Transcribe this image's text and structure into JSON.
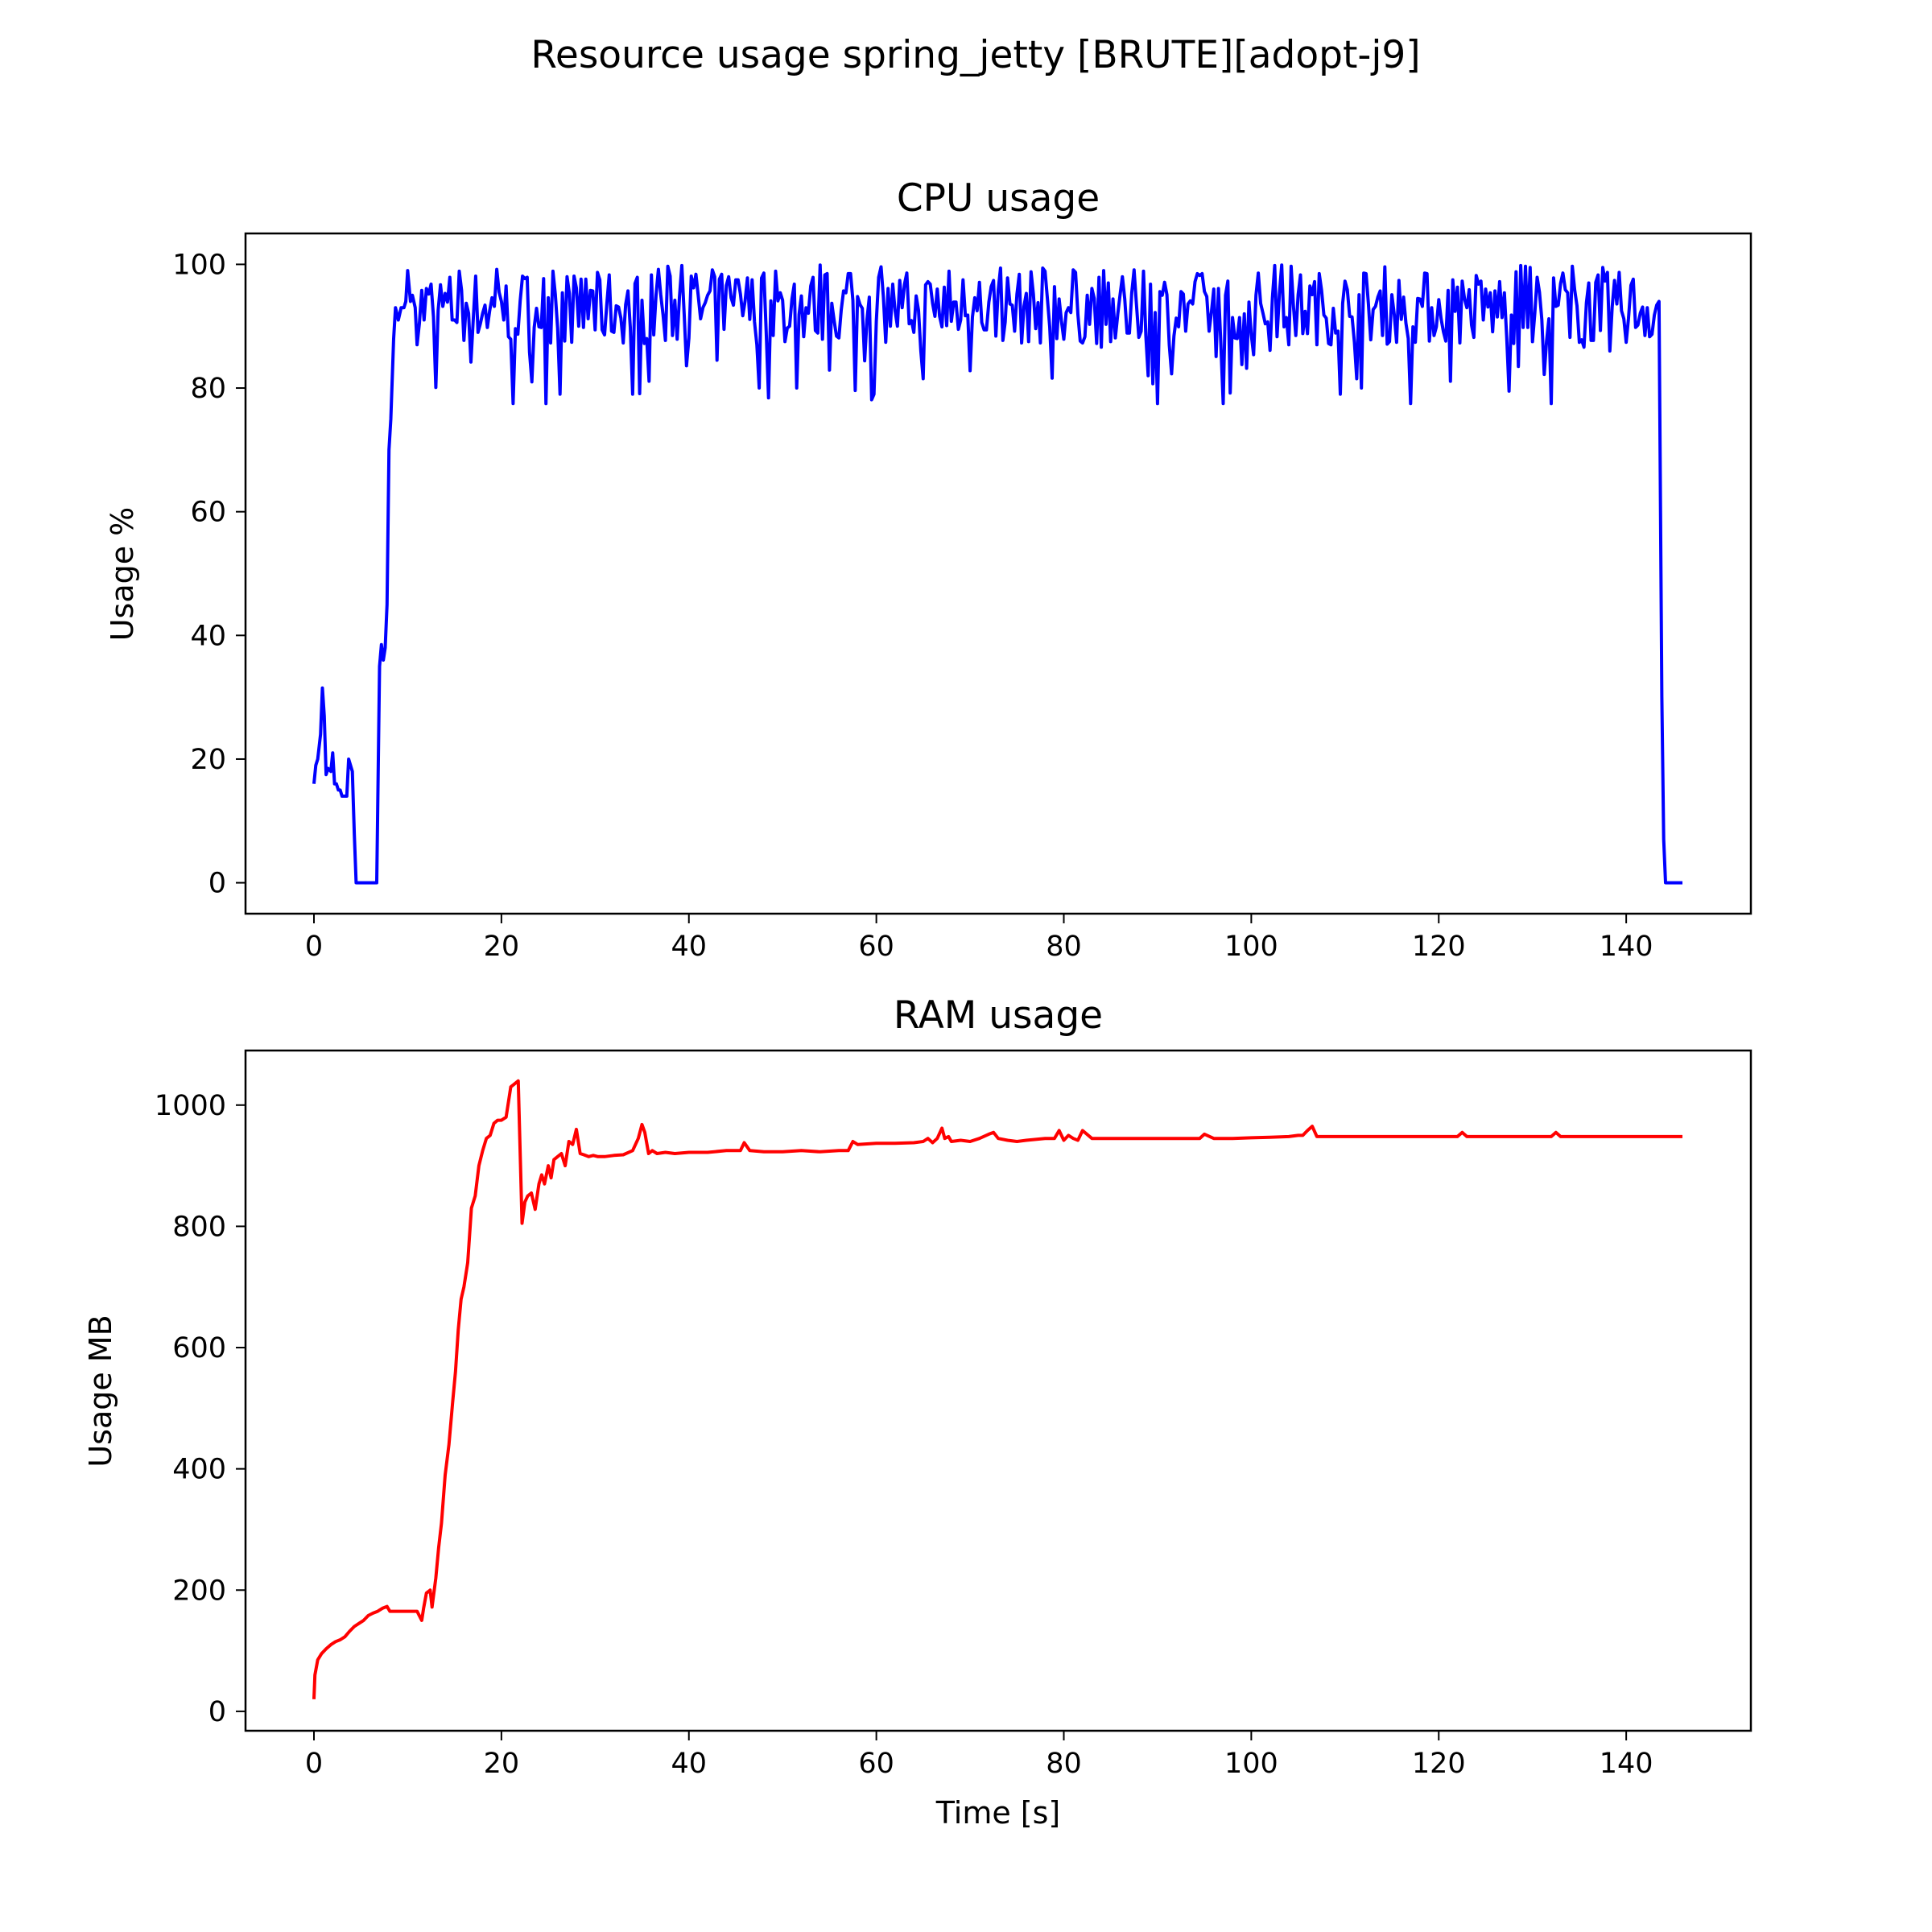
{
  "figure_title": "Resource usage spring_jetty [BRUTE][adopt-j9]",
  "chart_data": [
    {
      "id": "cpu",
      "type": "line",
      "title": "CPU usage",
      "xlabel": "",
      "ylabel": "Usage %",
      "xlim": [
        -7.3,
        153.3
      ],
      "ylim": [
        -5,
        105
      ],
      "xticks": [
        0,
        20,
        40,
        60,
        80,
        100,
        120,
        140
      ],
      "xtick_labels": [
        "0",
        "20",
        "40",
        "60",
        "80",
        "100",
        "120",
        "140"
      ],
      "yticks": [
        0,
        20,
        40,
        60,
        80,
        100
      ],
      "ytick_labels": [
        "0",
        "20",
        "40",
        "60",
        "80",
        "100"
      ],
      "grid": false,
      "series": [
        {
          "name": "CPU",
          "color": "#0000ff",
          "x": [
            0,
            0.2,
            0.4,
            0.7,
            0.9,
            1.1,
            1.3,
            1.5,
            1.8,
            2.0,
            2.2,
            2.4,
            2.6,
            2.8,
            3.0,
            3.2,
            3.5,
            3.7,
            3.9,
            4.1,
            4.3,
            4.5,
            4.7,
            5.0,
            6.0,
            6.7,
            7.0,
            7.2,
            7.4,
            7.6,
            7.8,
            8.0,
            8.2,
            8.5,
            8.7,
            9.0,
            9.3,
            9.6,
            9.8,
            10.0,
            10.3,
            10.5,
            10.8
          ],
          "y": [
            16,
            19,
            20,
            24,
            31.5,
            27,
            17.5,
            18.5,
            18,
            21,
            16,
            16,
            15,
            15,
            14,
            14,
            14,
            20,
            19,
            18,
            8,
            0,
            0,
            0,
            0,
            0,
            35,
            38.5,
            36,
            38,
            45,
            70,
            75,
            88,
            93,
            91,
            93,
            93,
            94,
            99,
            94,
            95,
            93
          ]
        }
      ],
      "noise": {
        "from": 11,
        "to": 143.4,
        "step": 0.25,
        "mean": 93,
        "min_value": 77.5,
        "max_value": 100
      },
      "tail": {
        "x": [
          143.5,
          143.8,
          144.0,
          144.2,
          146.0
        ],
        "y": [
          94,
          30,
          7,
          0,
          0
        ]
      }
    },
    {
      "id": "ram",
      "type": "line",
      "title": "RAM usage",
      "xlabel": "Time [s]",
      "ylabel": "Usage MB",
      "xlim": [
        -7.3,
        153.3
      ],
      "ylim": [
        -32,
        1090
      ],
      "xticks": [
        0,
        20,
        40,
        60,
        80,
        100,
        120,
        140
      ],
      "xtick_labels": [
        "0",
        "20",
        "40",
        "60",
        "80",
        "100",
        "120",
        "140"
      ],
      "yticks": [
        0,
        200,
        400,
        600,
        800,
        1000
      ],
      "ytick_labels": [
        "0",
        "200",
        "400",
        "600",
        "800",
        "1000"
      ],
      "grid": false,
      "series": [
        {
          "name": "RAM",
          "color": "#ff0000",
          "x": [
            0,
            0.1,
            0.4,
            0.8,
            1.3,
            1.8,
            2.3,
            2.8,
            3.3,
            3.8,
            4.3,
            4.8,
            5.3,
            5.8,
            6.3,
            6.8,
            7.3,
            7.8,
            8.1,
            8.5,
            9.0,
            10.0,
            11.0,
            11.5,
            11.7,
            12.0,
            12.4,
            12.6,
            13.0,
            13.3,
            13.6,
            14.0,
            14.4,
            14.8,
            15.1,
            15.4,
            15.7,
            16.0,
            16.4,
            16.8,
            17.2,
            17.6,
            18.0,
            18.4,
            18.8,
            19.2,
            19.6,
            20.0,
            20.5,
            21.0,
            21.4,
            21.8,
            22.2,
            22.5,
            22.8,
            23.2,
            23.6,
            24.0,
            24.3,
            24.6,
            25.0,
            25.3,
            25.6,
            26.0,
            26.4,
            26.8,
            27.2,
            27.6,
            28.0,
            28.4,
            28.8,
            29.3,
            29.8,
            30.3,
            31.0,
            32.0,
            33.0,
            34.0,
            34.6,
            35.0,
            35.3,
            35.7,
            36.1,
            36.6,
            37.5,
            38.5,
            40.0,
            42.0,
            44.0,
            45.5,
            45.9,
            46.5,
            48.0,
            50.0,
            52.0,
            54.0,
            56.0,
            57.0,
            57.5,
            58.0,
            60.0,
            62.0,
            64.0,
            65.0,
            65.5,
            66.0,
            66.5,
            67.0,
            67.3,
            67.7,
            68.0,
            69.0,
            70.0,
            71.0,
            72.0,
            72.5,
            73.0,
            74.0,
            75.0,
            76.0,
            78.0,
            79.0,
            79.5,
            80.0,
            80.5,
            81.0,
            81.5,
            82.0,
            83.0,
            85.0,
            90.0,
            94.0,
            94.5,
            95.0,
            96.0,
            98.0,
            100.0,
            102.0,
            104.0,
            105.0,
            105.5,
            106.0,
            106.5,
            107.0,
            110.0,
            115.0,
            120.0,
            121.5,
            122.0,
            122.5,
            123.0,
            125.0,
            130.0,
            132.0,
            132.5,
            133.0,
            135.0,
            138.0,
            140.0,
            143.0,
            146.0
          ],
          "y": [
            20,
            60,
            85,
            95,
            103,
            110,
            115,
            118,
            123,
            132,
            140,
            145,
            150,
            158,
            162,
            165,
            170,
            173,
            165,
            165,
            165,
            165,
            165,
            150,
            170,
            195,
            200,
            172,
            220,
            270,
            310,
            390,
            440,
            510,
            560,
            630,
            680,
            700,
            740,
            830,
            850,
            900,
            925,
            945,
            950,
            970,
            975,
            975,
            980,
            1030,
            1035,
            1040,
            805,
            840,
            850,
            855,
            828,
            870,
            885,
            870,
            900,
            880,
            910,
            915,
            920,
            900,
            940,
            935,
            960,
            920,
            918,
            915,
            917,
            915,
            915,
            917,
            918,
            925,
            945,
            968,
            955,
            920,
            925,
            920,
            922,
            920,
            922,
            922,
            925,
            925,
            938,
            925,
            923,
            923,
            925,
            923,
            925,
            925,
            940,
            935,
            937,
            937,
            938,
            940,
            945,
            938,
            945,
            962,
            945,
            948,
            940,
            942,
            940,
            945,
            952,
            955,
            945,
            942,
            940,
            942,
            945,
            945,
            958,
            942,
            950,
            945,
            942,
            958,
            945,
            945,
            945,
            945,
            945,
            952,
            945,
            945,
            946,
            947,
            948,
            950,
            950,
            958,
            965,
            948,
            948,
            948,
            948,
            948,
            948,
            955,
            948,
            948,
            948,
            948,
            955,
            948,
            948,
            948,
            948,
            948,
            948
          ]
        }
      ]
    }
  ]
}
